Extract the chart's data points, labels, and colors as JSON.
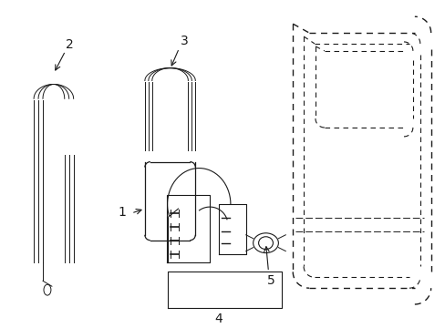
{
  "bg_color": "#ffffff",
  "line_color": "#1a1a1a",
  "lw": 1.0,
  "lw_thick": 1.5,
  "lw_thin": 0.6
}
